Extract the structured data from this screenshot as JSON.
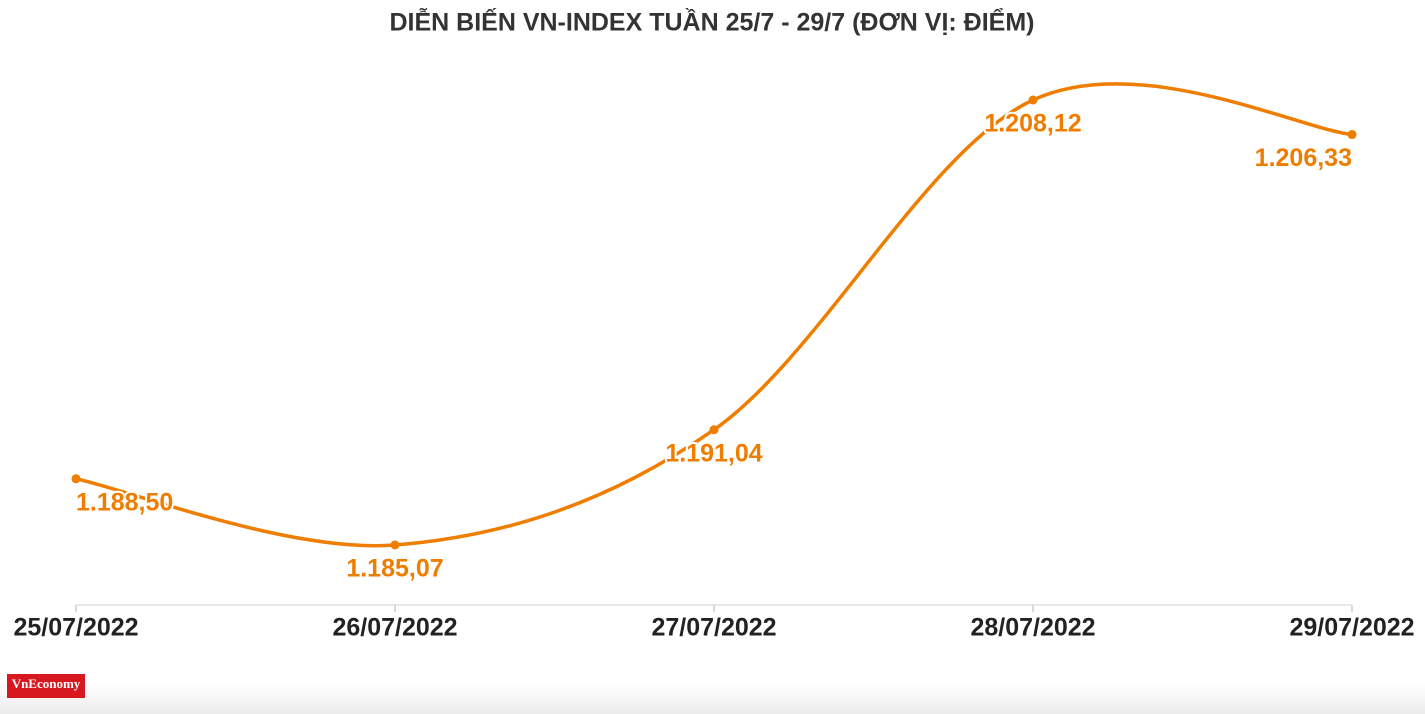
{
  "chart_data": {
    "type": "line",
    "title": "DIỄN BIẾN VN-INDEX TUẦN 25/7 - 29/7 (ĐƠN VỊ: ĐIỂM)",
    "categories": [
      "25/07/2022",
      "26/07/2022",
      "27/07/2022",
      "28/07/2022",
      "29/07/2022"
    ],
    "series": [
      {
        "name": "VN-Index",
        "color": "#ef7d00",
        "values": [
          1188.5,
          1185.07,
          1191.04,
          1208.12,
          1206.33
        ],
        "value_labels": [
          "1.188,50",
          "1.185,07",
          "1.191,04",
          "1.208,12",
          "1.206,33"
        ]
      }
    ],
    "source": "VnEconomy"
  }
}
